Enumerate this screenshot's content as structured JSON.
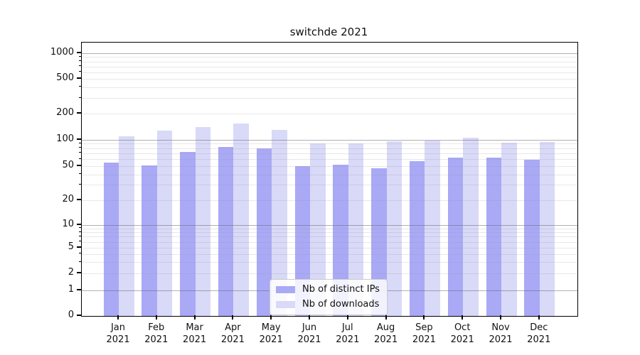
{
  "figure_title": "switchde 2021",
  "chart_data": {
    "type": "bar",
    "title": "switchde 2021",
    "xlabel": "",
    "ylabel": "",
    "categories": [
      {
        "month": "Jan",
        "year": "2021"
      },
      {
        "month": "Feb",
        "year": "2021"
      },
      {
        "month": "Mar",
        "year": "2021"
      },
      {
        "month": "Apr",
        "year": "2021"
      },
      {
        "month": "May",
        "year": "2021"
      },
      {
        "month": "Jun",
        "year": "2021"
      },
      {
        "month": "Jul",
        "year": "2021"
      },
      {
        "month": "Aug",
        "year": "2021"
      },
      {
        "month": "Sep",
        "year": "2021"
      },
      {
        "month": "Oct",
        "year": "2021"
      },
      {
        "month": "Nov",
        "year": "2021"
      },
      {
        "month": "Dec",
        "year": "2021"
      }
    ],
    "series": [
      {
        "name": "Nb of distinct IPs",
        "color": "#a9a9f6",
        "values": [
          55,
          51,
          73,
          82,
          79,
          50,
          52,
          47,
          57,
          62,
          62,
          59
        ]
      },
      {
        "name": "Nb of downloads",
        "color": "#d9d9f8",
        "values": [
          109,
          127,
          139,
          152,
          129,
          90,
          91,
          96,
          98,
          105,
          92,
          93
        ]
      }
    ],
    "y_axis": {
      "scale": "log-like (symlog/asinh), linear below 1",
      "tick_labels": [
        0,
        1,
        2,
        5,
        10,
        20,
        50,
        100,
        200,
        500,
        1000
      ],
      "major_gridlines": [
        1,
        10,
        100,
        1000
      ],
      "minor_gridlines": [
        2,
        3,
        4,
        5,
        6,
        7,
        8,
        9,
        20,
        30,
        40,
        50,
        60,
        70,
        80,
        90,
        200,
        300,
        400,
        500,
        600,
        700,
        800,
        900
      ],
      "ylim_top_approx": 1300
    },
    "legend": {
      "entries": [
        "Nb of distinct IPs",
        "Nb of downloads"
      ],
      "position": "inside, lower middle"
    },
    "grid": "horizontal major + minor, drawn over bars"
  },
  "colors": {
    "bar_distinct_ips": "#a9a9f6",
    "bar_downloads": "#d9d9f8",
    "axis": "#000000",
    "text": "#111111",
    "grid_major": "#b3b3b3",
    "grid_minor": "#e9e9e9",
    "legend_border": "#cccccc",
    "background": "#ffffff"
  }
}
